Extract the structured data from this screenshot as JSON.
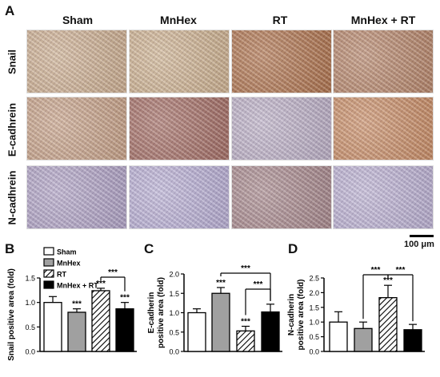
{
  "panels": {
    "A": "A",
    "B": "B",
    "C": "C",
    "D": "D"
  },
  "histology": {
    "columns": [
      "Sham",
      "MnHex",
      "RT",
      "MnHex + RT"
    ],
    "rows": [
      {
        "label": "Snail",
        "tints": [
          "#c8a887",
          "#c9ab86",
          "#a8683e",
          "#b07c5d"
        ]
      },
      {
        "label": "E-cadhrein",
        "tints": [
          "#c29a7d",
          "#9c6257",
          "#b6a9c0",
          "#c48459"
        ]
      },
      {
        "label": "N-cadhrein",
        "tints": [
          "#a99bbf",
          "#b2a8cf",
          "#a07f82",
          "#b5aacd"
        ]
      }
    ],
    "scale_bar": "100 μm"
  },
  "colors": {
    "sham": "#ffffff",
    "mnhex": "#a0a0a0",
    "rt_hatch": "#000000",
    "combo": "#000000",
    "axis": "#000000"
  },
  "legend": {
    "items": [
      {
        "label": "Sham",
        "style": "white"
      },
      {
        "label": "MnHex",
        "style": "gray"
      },
      {
        "label": "RT",
        "style": "hatch"
      },
      {
        "label": "MnHex + RT",
        "style": "black"
      }
    ]
  },
  "chart_data": [
    {
      "type": "bar",
      "panel": "B",
      "categories": [
        "Sham",
        "MnHex",
        "RT",
        "MnHex + RT"
      ],
      "values": [
        1.0,
        0.8,
        1.24,
        0.87
      ],
      "errors": [
        0.12,
        0.07,
        0.05,
        0.13
      ],
      "ylabel": "Snail positive area (fold)",
      "ylim": [
        0,
        1.5
      ],
      "yticks": [
        "0.0",
        "0.5",
        "1.0",
        "1.5"
      ],
      "tick_values": [
        0,
        0.5,
        1.0,
        1.5
      ],
      "significance": [
        "",
        "***",
        "***",
        "***"
      ],
      "brackets": [
        {
          "from": 2,
          "to": 3,
          "label": "***"
        }
      ]
    },
    {
      "type": "bar",
      "panel": "C",
      "categories": [
        "Sham",
        "MnHex",
        "RT",
        "MnHex + RT"
      ],
      "values": [
        1.0,
        1.5,
        0.53,
        1.02
      ],
      "errors": [
        0.1,
        0.15,
        0.12,
        0.2
      ],
      "ylabel_lines": [
        "E-cadherin",
        "positive area (fold)"
      ],
      "ylim": [
        0,
        2.0
      ],
      "yticks": [
        "0.0",
        "0.5",
        "1.0",
        "1.5",
        "2.0"
      ],
      "tick_values": [
        0,
        0.5,
        1.0,
        1.5,
        2.0
      ],
      "significance": [
        "",
        "***",
        "***",
        ""
      ],
      "brackets": [
        {
          "from": 1,
          "to": 3,
          "label": "***"
        },
        {
          "from": 2,
          "to": 3,
          "label": "***"
        }
      ]
    },
    {
      "type": "bar",
      "panel": "D",
      "categories": [
        "Sham",
        "MnHex",
        "RT",
        "MnHex + RT"
      ],
      "values": [
        1.0,
        0.78,
        1.83,
        0.74
      ],
      "errors": [
        0.35,
        0.22,
        0.42,
        0.18
      ],
      "ylabel_lines": [
        "N-cadherin",
        "positive area (fold)"
      ],
      "ylim": [
        0,
        2.5
      ],
      "yticks": [
        "0.0",
        "0.5",
        "1.0",
        "1.5",
        "2.0",
        "2.5"
      ],
      "tick_values": [
        0,
        0.5,
        1.0,
        1.5,
        2.0,
        2.5
      ],
      "significance": [
        "",
        "",
        "***",
        ""
      ],
      "brackets": [
        {
          "from": 1,
          "to": 2,
          "label": "***"
        },
        {
          "from": 2,
          "to": 3,
          "label": "***"
        }
      ]
    }
  ]
}
